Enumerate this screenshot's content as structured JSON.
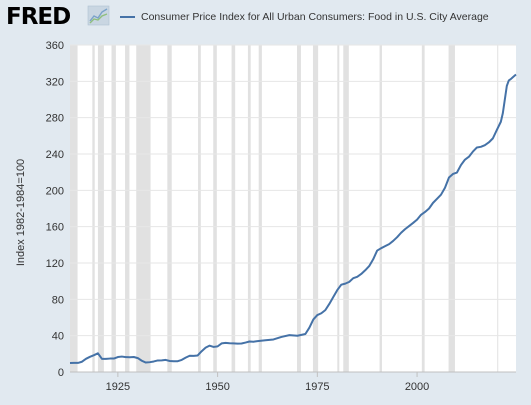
{
  "header": {
    "logo_text": "FRED",
    "logo_icon": "fred-chart-icon",
    "legend_label": "Consumer Price Index for All Urban Consumers: Food in U.S. City Average"
  },
  "colors": {
    "background": "#e1e9f0",
    "plot_background": "#ffffff",
    "line": "#4572a7",
    "recession": "#e1e1e1",
    "gridline": "#e6e6e6",
    "text": "#595959",
    "logo": "#000000"
  },
  "chart_data": {
    "type": "line",
    "title": "",
    "xlabel": "",
    "ylabel": "Index 1982-1984=100",
    "xlim": [
      1913,
      2024.8
    ],
    "ylim": [
      0,
      360
    ],
    "x_ticks": [
      1925,
      1950,
      1975,
      2000
    ],
    "y_ticks": [
      0,
      40,
      80,
      120,
      160,
      200,
      240,
      280,
      320,
      360
    ],
    "grid": "horizontal",
    "legend_position": "top",
    "series": [
      {
        "name": "Consumer Price Index for All Urban Consumers: Food in U.S. City Average",
        "x": [
          1913,
          1914,
          1915,
          1916,
          1917,
          1918,
          1919,
          1920,
          1921,
          1922,
          1923,
          1924,
          1925,
          1926,
          1927,
          1928,
          1929,
          1930,
          1931,
          1932,
          1933,
          1934,
          1935,
          1936,
          1937,
          1938,
          1939,
          1940,
          1941,
          1942,
          1943,
          1944,
          1945,
          1946,
          1947,
          1948,
          1949,
          1950,
          1951,
          1952,
          1953,
          1954,
          1955,
          1956,
          1957,
          1958,
          1959,
          1960,
          1962,
          1964,
          1966,
          1968,
          1970,
          1972,
          1973,
          1974,
          1975,
          1976,
          1977,
          1978,
          1979,
          1980,
          1981,
          1982,
          1983,
          1984,
          1985,
          1986,
          1987,
          1988,
          1989,
          1990,
          1991,
          1992,
          1993,
          1994,
          1995,
          1996,
          1997,
          1998,
          1999,
          2000,
          2001,
          2002,
          2003,
          2004,
          2005,
          2006,
          2007,
          2008,
          2009,
          2010,
          2011,
          2012,
          2013,
          2014,
          2015,
          2016,
          2017,
          2018,
          2019,
          2020,
          2021,
          2021.5,
          2022,
          2022.5,
          2023,
          2023.5,
          2024,
          2024.8
        ],
        "values": [
          9.9,
          10.1,
          10.0,
          11.3,
          14.5,
          16.7,
          18.5,
          20.6,
          14.5,
          14.4,
          14.8,
          14.8,
          16.5,
          17.0,
          16.4,
          16.3,
          16.5,
          15.3,
          12.4,
          10.4,
          10.8,
          11.6,
          12.7,
          12.8,
          13.3,
          12.1,
          11.8,
          11.9,
          13.3,
          15.8,
          17.9,
          17.8,
          18.2,
          22.9,
          26.8,
          29.0,
          27.6,
          28.2,
          31.5,
          32.0,
          31.6,
          31.5,
          31.2,
          31.4,
          32.4,
          33.6,
          33.3,
          34.0,
          34.9,
          35.8,
          38.6,
          40.6,
          39.9,
          41.8,
          48.8,
          57.9,
          62.7,
          64.7,
          68.1,
          74.9,
          82.5,
          90.2,
          96.1,
          97.3,
          99.2,
          103.3,
          104.8,
          107.9,
          112.0,
          116.6,
          124.1,
          133.7,
          136.3,
          138.6,
          140.8,
          144.3,
          148.4,
          153.3,
          157.3,
          160.7,
          164.1,
          167.8,
          173.1,
          176.2,
          180.0,
          186.2,
          190.7,
          195.2,
          202.9,
          214.1,
          218.0,
          219.6,
          227.8,
          233.8,
          237.0,
          242.7,
          247.2,
          247.9,
          249.7,
          252.8,
          257.2,
          266.5,
          275.5,
          285.0,
          300.0,
          315.0,
          321.0,
          322.5,
          324.5,
          327.5
        ]
      }
    ],
    "recessions": [
      [
        1913.0,
        1914.9
      ],
      [
        1918.6,
        1919.2
      ],
      [
        1920.0,
        1921.5
      ],
      [
        1923.4,
        1924.5
      ],
      [
        1926.8,
        1927.9
      ],
      [
        1929.6,
        1933.2
      ],
      [
        1937.4,
        1938.5
      ],
      [
        1945.1,
        1945.8
      ],
      [
        1948.9,
        1949.8
      ],
      [
        1953.5,
        1954.4
      ],
      [
        1957.6,
        1958.3
      ],
      [
        1960.3,
        1961.1
      ],
      [
        1969.9,
        1970.9
      ],
      [
        1973.9,
        1975.2
      ],
      [
        1980.0,
        1980.5
      ],
      [
        1981.5,
        1982.9
      ],
      [
        1990.6,
        1991.2
      ],
      [
        2001.2,
        2001.9
      ],
      [
        2007.9,
        2009.5
      ],
      [
        2020.1,
        2020.3
      ]
    ]
  }
}
